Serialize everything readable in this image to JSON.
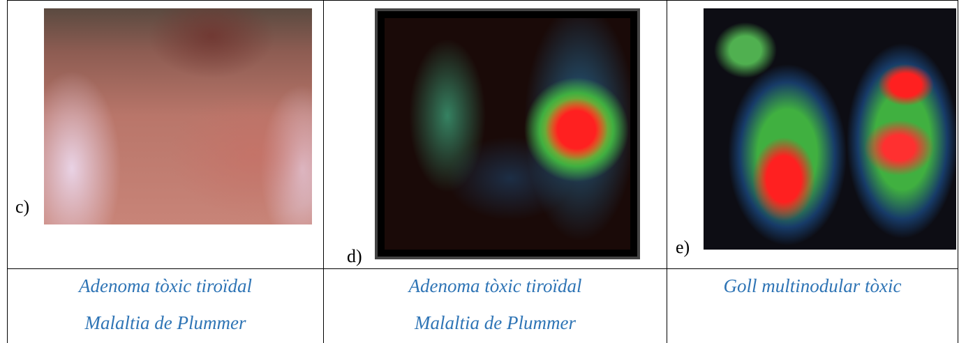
{
  "table": {
    "cells": [
      {
        "label": "c)",
        "caption": [
          "Adenoma tòxic tiroïdal",
          "Malaltia de Plummer"
        ]
      },
      {
        "label": "d)",
        "caption": [
          "Adenoma tòxic tiroïdal",
          "Malaltia de Plummer"
        ]
      },
      {
        "label": "e)",
        "caption": [
          "Goll multinodular tòxic"
        ]
      }
    ]
  }
}
